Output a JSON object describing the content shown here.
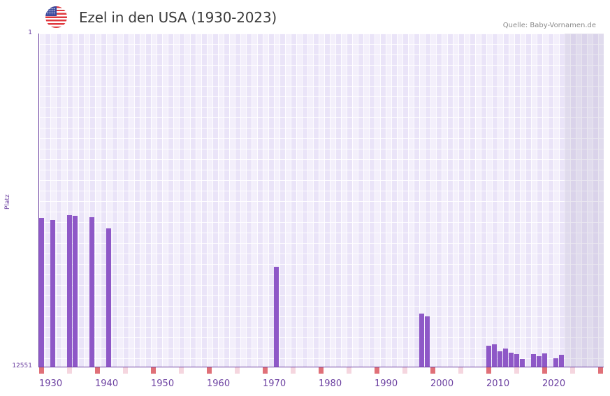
{
  "header": {
    "flag_icon": "us-flag-icon",
    "title": "Ezel in den USA (1930-2023)",
    "source": "Quelle: Baby-Vornamen.de"
  },
  "colors": {
    "bar": "#8e58c7",
    "axis": "#6b3fa0",
    "decade_marker": "#e07078",
    "half_decade_marker": "#f5d6df",
    "plot_bg": "#f3effb",
    "future_shade": "#e2dcec"
  },
  "chart_data": {
    "type": "bar",
    "title": "Ezel in den USA (1930-2023)",
    "xlabel": "",
    "ylabel": "Platz",
    "y_inverted": true,
    "ylim": [
      12551,
      1
    ],
    "xlim": [
      1930,
      2030
    ],
    "y_ticks": [
      "1",
      "12551"
    ],
    "x_ticks": [
      "1930",
      "1940",
      "1950",
      "1960",
      "1970",
      "1980",
      "1990",
      "2000",
      "2010",
      "2020"
    ],
    "grid": true,
    "legend": "none",
    "shaded_region": {
      "from": 2024,
      "to": 2030,
      "meaning": "future years"
    },
    "x": [
      1930,
      1932,
      1935,
      1936,
      1939,
      1942,
      1972,
      1998,
      1999,
      2010,
      2011,
      2012,
      2013,
      2014,
      2015,
      2016,
      2018,
      2019,
      2020,
      2022,
      2023
    ],
    "series": [
      {
        "name": "Platz",
        "values": [
          6941,
          7020,
          6836,
          6862,
          6915,
          7336,
          8783,
          10545,
          10651,
          11755,
          11703,
          11966,
          11860,
          12018,
          12071,
          12255,
          12071,
          12150,
          12045,
          12229,
          12097
        ]
      }
    ],
    "source": "Quelle: Baby-Vornamen.de"
  },
  "axis": {
    "y_top_label": "1",
    "y_bottom_label": "12551",
    "y_title": "Platz",
    "x_labels": [
      "1930",
      "1940",
      "1950",
      "1960",
      "1970",
      "1980",
      "1990",
      "2000",
      "2010",
      "2020"
    ]
  }
}
